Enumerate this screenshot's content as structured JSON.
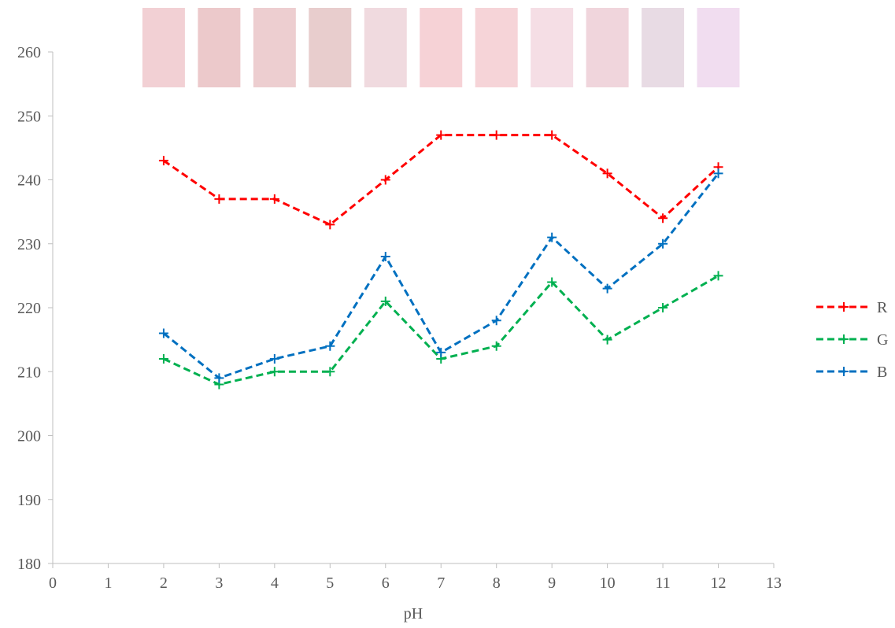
{
  "chart_data": {
    "type": "line",
    "title": "",
    "xlabel": "pH",
    "ylabel": "",
    "xlim": [
      0,
      13
    ],
    "ylim": [
      180,
      260
    ],
    "x_ticks": [
      0,
      1,
      2,
      3,
      4,
      5,
      6,
      7,
      8,
      9,
      10,
      11,
      12,
      13
    ],
    "y_ticks": [
      180,
      190,
      200,
      210,
      220,
      230,
      240,
      250,
      260
    ],
    "grid": false,
    "legend_position": "right",
    "x": [
      2,
      3,
      4,
      5,
      6,
      7,
      8,
      9,
      10,
      11,
      12
    ],
    "series": [
      {
        "name": "R",
        "color": "#ff0000",
        "values": [
          243,
          237,
          237,
          233,
          240,
          247,
          247,
          247,
          241,
          234,
          242
        ]
      },
      {
        "name": "G",
        "color": "#00b050",
        "values": [
          212,
          208,
          210,
          210,
          221,
          212,
          214,
          224,
          215,
          220,
          225
        ]
      },
      {
        "name": "B",
        "color": "#0070c0",
        "values": [
          216,
          209,
          212,
          214,
          228,
          213,
          218,
          231,
          223,
          230,
          241
        ]
      }
    ],
    "line_style": "dashed",
    "marker": "plus",
    "color_swatches": {
      "x": [
        2,
        3,
        4,
        5,
        6,
        7,
        8,
        9,
        10,
        11,
        12
      ],
      "colors": [
        "#f2d0d4",
        "#ecc9cb",
        "#edced0",
        "#e8cdcd",
        "#f0dadf",
        "#f6d2d6",
        "#f6d4d8",
        "#f5dee5",
        "#f0d5dc",
        "#e8dbe4",
        "#f1ddf0"
      ]
    }
  }
}
